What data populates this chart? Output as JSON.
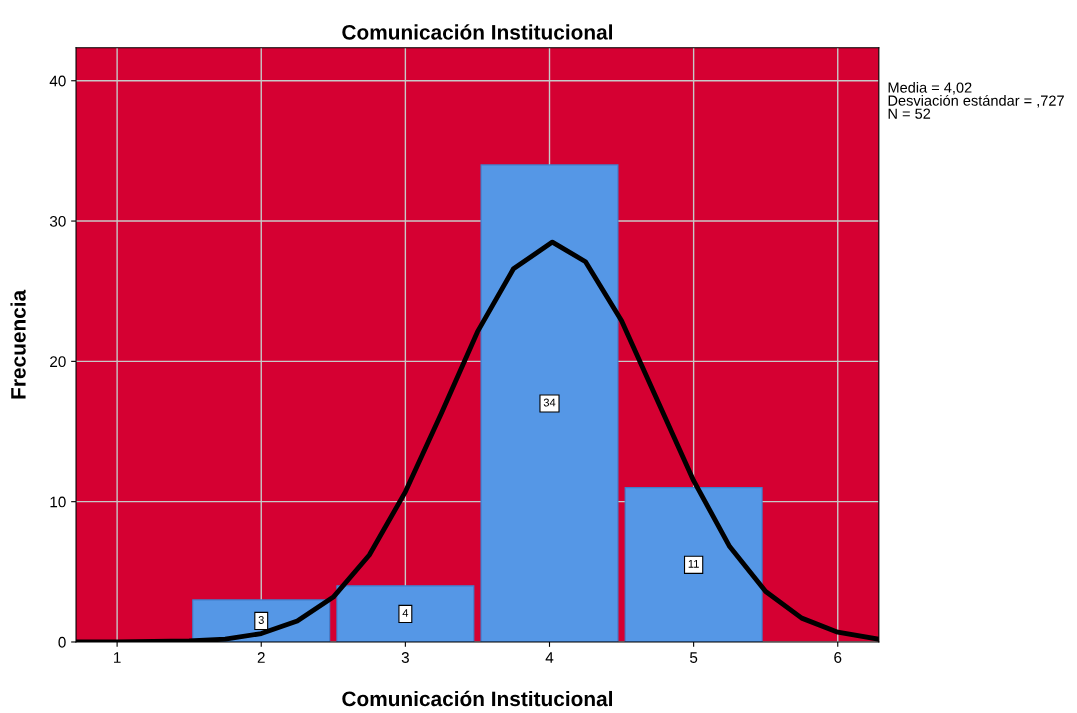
{
  "chart_data": {
    "type": "histogram",
    "title": "Comunicación Institucional",
    "xlabel": "Comunicación Institucional",
    "ylabel": "Frecuencia",
    "bins": [
      1.5,
      2.5,
      3.5,
      4.5,
      5.5
    ],
    "values": [
      3,
      4,
      34,
      11
    ],
    "color": "#5597e6",
    "value_labels": [
      "3",
      "4",
      "34",
      "11"
    ],
    "series": [
      {
        "type": "line",
        "color": "#000000",
        "x": [
          0.72,
          1.0,
          1.5,
          1.75,
          2.0,
          2.25,
          2.5,
          2.75,
          3.0,
          3.25,
          3.5,
          3.75,
          4.02,
          4.25,
          4.5,
          4.75,
          5.0,
          5.25,
          5.5,
          5.75,
          6.0,
          6.28
        ],
        "values": [
          0,
          0,
          0.07,
          0.2,
          0.6,
          1.5,
          3.2,
          6.2,
          10.7,
          16.3,
          22.1,
          26.6,
          28.5,
          27.1,
          22.9,
          17.2,
          11.5,
          6.8,
          3.6,
          1.7,
          0.7,
          0.2
        ]
      }
    ],
    "xlim": [
      0.715,
      6.285
    ],
    "ylim": [
      0,
      42.35
    ],
    "xticks": [
      1,
      2,
      3,
      4,
      5,
      6
    ],
    "yticks": [
      0,
      10,
      20,
      30,
      40
    ],
    "grid": true,
    "marker": "none",
    "line_style": "solid",
    "annotations": [
      "Media = 4,02",
      "Desviación estándar = ,727",
      "N = 52"
    ]
  }
}
